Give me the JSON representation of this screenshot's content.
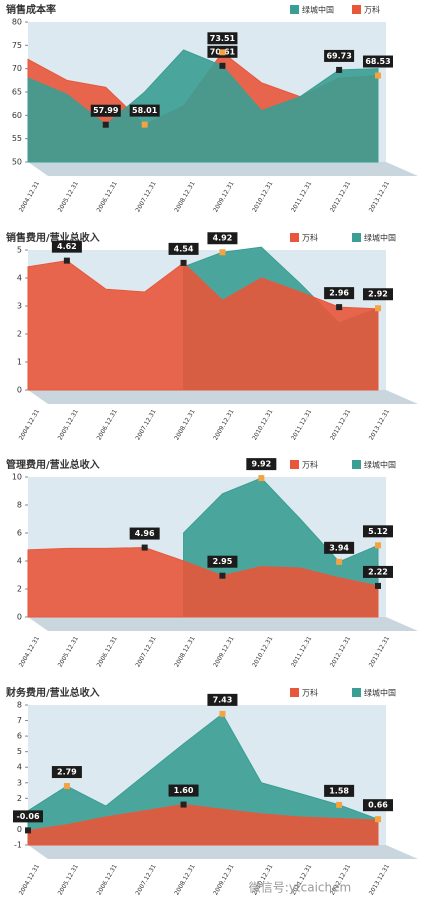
{
  "chart_data": [
    {
      "type": "area",
      "title": "销售成本率",
      "categories": [
        "2004.12.31",
        "2005.12.31",
        "2006.12.31",
        "2007.12.31",
        "2008.12.31",
        "2009.12.31",
        "2010.12.31",
        "2011.12.31",
        "2012.12.31",
        "2013.12.31"
      ],
      "series": [
        {
          "name": "绿城中国",
          "color": "#3a9e93",
          "values": [
            68,
            64.5,
            57.99,
            65,
            74,
            70.61,
            61,
            64,
            69.73,
            70
          ],
          "value_labels": [
            null,
            null,
            "57.99",
            null,
            null,
            "70.61",
            null,
            null,
            "69.73",
            null
          ]
        },
        {
          "name": "万科",
          "color": "#e8573a",
          "values": [
            72,
            67.5,
            66,
            58.01,
            62,
            73.51,
            67,
            64,
            68,
            68.53
          ],
          "value_labels": [
            null,
            null,
            null,
            "58.01",
            null,
            "73.51",
            null,
            null,
            null,
            "68.53"
          ]
        }
      ],
      "ylim": [
        50,
        80
      ],
      "yticks": [
        50,
        55,
        60,
        65,
        70,
        75,
        80
      ]
    },
    {
      "type": "area",
      "title": "销售费用/营业总收入",
      "categories": [
        "2004.12.31",
        "2005.12.31",
        "2006.12.31",
        "2007.12.31",
        "2008.12.31",
        "2009.12.31",
        "2010.12.31",
        "2011.12.31",
        "2012.12.31",
        "2013.12.31"
      ],
      "series": [
        {
          "name": "万科",
          "color": "#e8573a",
          "values": [
            4.4,
            4.62,
            3.6,
            3.5,
            4.54,
            3.2,
            4.0,
            3.5,
            2.96,
            2.9
          ],
          "value_labels": [
            null,
            "4.62",
            null,
            null,
            "4.54",
            null,
            null,
            null,
            "2.96",
            null
          ]
        },
        {
          "name": "绿城中国",
          "color": "#3a9e93",
          "values": [
            null,
            null,
            null,
            null,
            4.4,
            4.92,
            5.1,
            3.8,
            2.4,
            2.92
          ],
          "value_labels": [
            null,
            null,
            null,
            null,
            null,
            "4.92",
            null,
            null,
            null,
            "2.92"
          ]
        }
      ],
      "ylim": [
        0,
        5
      ],
      "yticks": [
        0,
        1,
        2,
        3,
        4,
        5
      ]
    },
    {
      "type": "area",
      "title": "管理费用/营业总收入",
      "categories": [
        "2004.12.31",
        "2005.12.31",
        "2006.12.31",
        "2007.12.31",
        "2008.12.31",
        "2009.12.31",
        "2010.12.31",
        "2011.12.31",
        "2012.12.31",
        "2013.12.31"
      ],
      "series": [
        {
          "name": "万科",
          "color": "#e8573a",
          "values": [
            4.8,
            4.9,
            4.9,
            4.96,
            4.0,
            2.95,
            3.6,
            3.5,
            2.8,
            2.22
          ],
          "value_labels": [
            null,
            null,
            null,
            "4.96",
            null,
            "2.95",
            null,
            null,
            null,
            "2.22"
          ]
        },
        {
          "name": "绿城中国",
          "color": "#3a9e93",
          "values": [
            null,
            null,
            null,
            null,
            6.0,
            8.8,
            9.92,
            7.0,
            3.94,
            5.12
          ],
          "value_labels": [
            null,
            null,
            null,
            null,
            null,
            null,
            "9.92",
            null,
            "3.94",
            "5.12"
          ]
        }
      ],
      "ylim": [
        0,
        10
      ],
      "yticks": [
        0,
        2,
        4,
        6,
        8,
        10
      ]
    },
    {
      "type": "area",
      "title": "财务费用/营业总收入",
      "categories": [
        "2004.12.31",
        "2005.12.31",
        "2006.12.31",
        "2007.12.31",
        "2008.12.31",
        "2009.12.31",
        "2010.12.31",
        "2011.12.31",
        "2012.12.31",
        "2013.12.31"
      ],
      "series": [
        {
          "name": "万科",
          "color": "#e8573a",
          "values": [
            -0.06,
            0.3,
            0.8,
            1.2,
            1.6,
            1.3,
            1.0,
            0.8,
            0.7,
            0.6
          ],
          "value_labels": [
            "-0.06",
            null,
            null,
            null,
            "1.60",
            null,
            null,
            null,
            null,
            null
          ]
        },
        {
          "name": "绿城中国",
          "color": "#3a9e93",
          "values": [
            1.2,
            2.79,
            1.5,
            3.5,
            5.5,
            7.43,
            3.0,
            2.3,
            1.58,
            0.66
          ],
          "value_labels": [
            null,
            "2.79",
            null,
            null,
            null,
            "7.43",
            null,
            null,
            "1.58",
            "0.66"
          ]
        }
      ],
      "ylim": [
        -1,
        8
      ],
      "yticks": [
        -1,
        0,
        1,
        2,
        3,
        4,
        5,
        6,
        7,
        8
      ]
    }
  ],
  "watermark": "微信号:ytcaichem"
}
